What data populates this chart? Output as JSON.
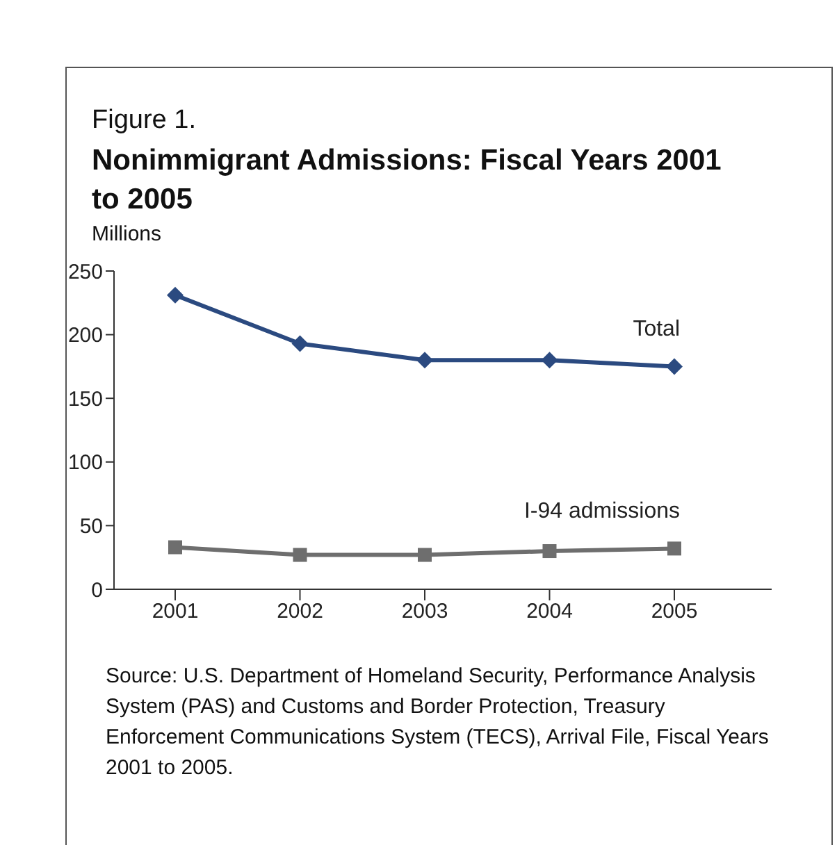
{
  "chart_data": {
    "type": "line",
    "title": "Figure 1.",
    "subtitle": "Nonimmigrant Admissions: Fiscal Years 2001 to 2005",
    "ylabel": "Millions",
    "categories": [
      "2001",
      "2002",
      "2003",
      "2004",
      "2005"
    ],
    "series": [
      {
        "name": "Total",
        "color": "#2b4a80",
        "marker": "diamond",
        "values": [
          231,
          193,
          180,
          180,
          175
        ]
      },
      {
        "name": "I-94 admissions",
        "color": "#6e6e6e",
        "marker": "square",
        "values": [
          33,
          27,
          27,
          30,
          32
        ]
      }
    ],
    "ylim": [
      0,
      250
    ],
    "yticks": [
      0,
      50,
      100,
      150,
      200,
      250
    ],
    "grid": false,
    "legend": false,
    "line_style": "solid",
    "annotations": [
      "Source: U.S. Department of Homeland Security, Performance Analysis System (PAS) and Customs and Border Protection, Treasury Enforcement Communications System (TECS), Arrival File, Fiscal Years 2001 to 2005."
    ]
  }
}
